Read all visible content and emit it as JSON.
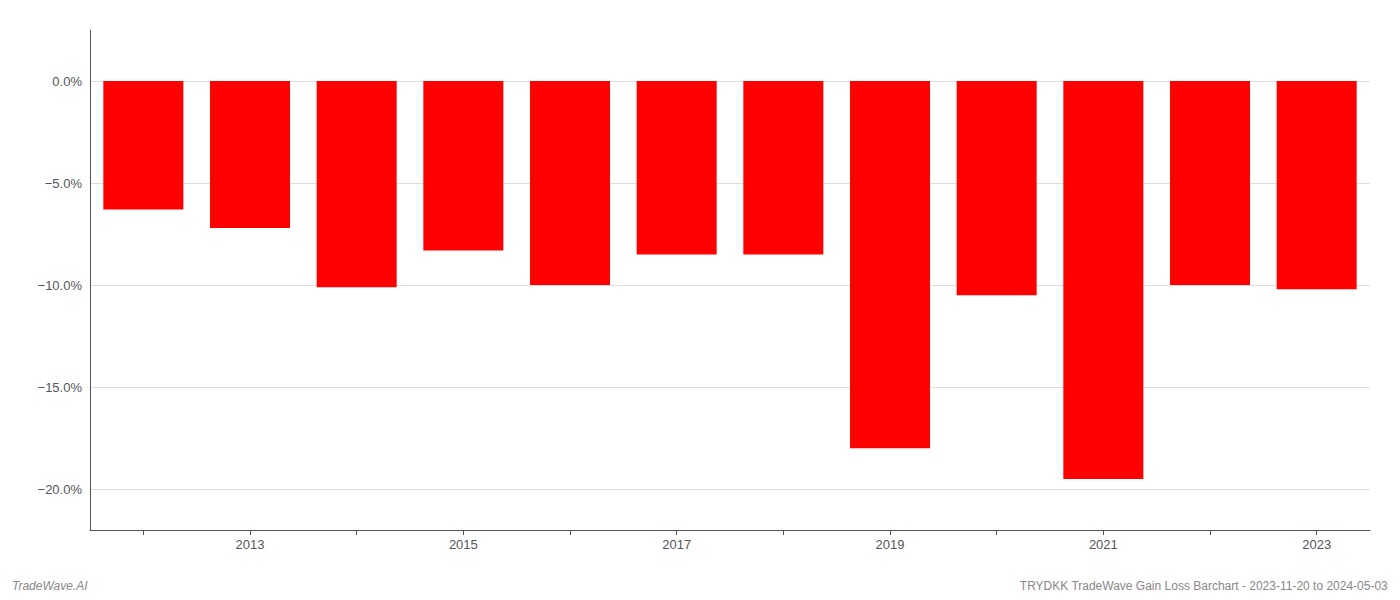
{
  "chart_data": {
    "type": "bar",
    "categories": [
      null,
      "2013",
      null,
      "2015",
      null,
      "2017",
      null,
      "2019",
      null,
      "2021",
      null,
      "2023"
    ],
    "values": [
      -6.3,
      -7.2,
      -10.1,
      -8.3,
      -10.0,
      -8.5,
      -8.5,
      -18.0,
      -10.5,
      -19.5,
      -10.0,
      -10.2
    ],
    "color": "#ff0000",
    "ylim": [
      -22,
      2.5
    ],
    "yticks": [
      {
        "value": 0.0,
        "label": "0.0%"
      },
      {
        "value": -5.0,
        "label": "−5.0%"
      },
      {
        "value": -10.0,
        "label": "−10.0%"
      },
      {
        "value": -15.0,
        "label": "−15.0%"
      },
      {
        "value": -20.0,
        "label": "−20.0%"
      }
    ],
    "grid": true,
    "annotations": [
      "TradeWave.AI",
      "TRYDKK TradeWave Gain Loss Barchart - 2023-11-20 to 2024-05-03"
    ]
  }
}
